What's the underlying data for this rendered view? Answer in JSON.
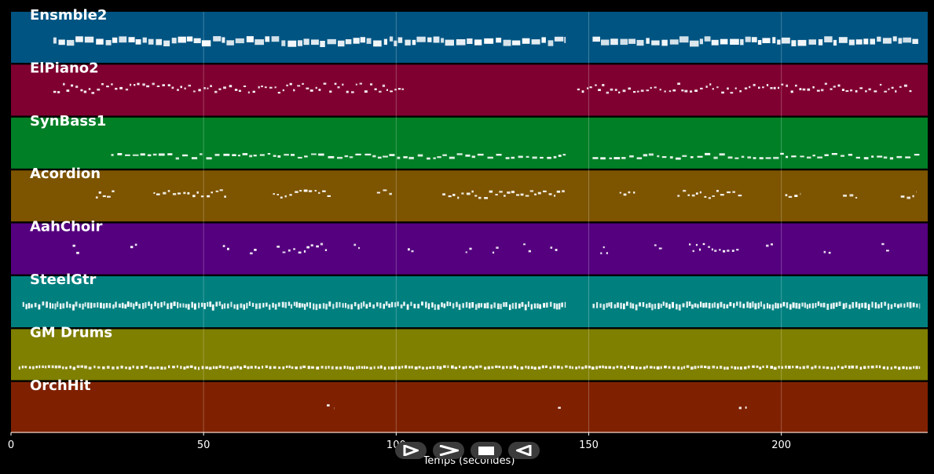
{
  "tracks": [
    {
      "name": "Ensmble2",
      "color": "#005482"
    },
    {
      "name": "ElPiano2",
      "color": "#7f0030"
    },
    {
      "name": "SynBass1",
      "color": "#007f26"
    },
    {
      "name": "Acordion",
      "color": "#7d5400"
    },
    {
      "name": "AahChoir",
      "color": "#55007f"
    },
    {
      "name": "SteelGtr",
      "color": "#007f7f"
    },
    {
      "name": "GM Drums",
      "color": "#7f7f00"
    },
    {
      "name": "OrchHit",
      "color": "#7f2100"
    }
  ],
  "axis": {
    "xlabel": "Temps (secondes)",
    "xlim": [
      0,
      238
    ],
    "ticks": [
      0,
      50,
      100,
      150,
      200
    ],
    "grid": true
  },
  "controls": [
    {
      "name": "play-button",
      "icon": "play-icon"
    },
    {
      "name": "fast-forward-button",
      "icon": "fast-forward-icon"
    },
    {
      "name": "stop-button",
      "icon": "stop-icon"
    },
    {
      "name": "rewind-button",
      "icon": "rewind-icon"
    }
  ]
}
